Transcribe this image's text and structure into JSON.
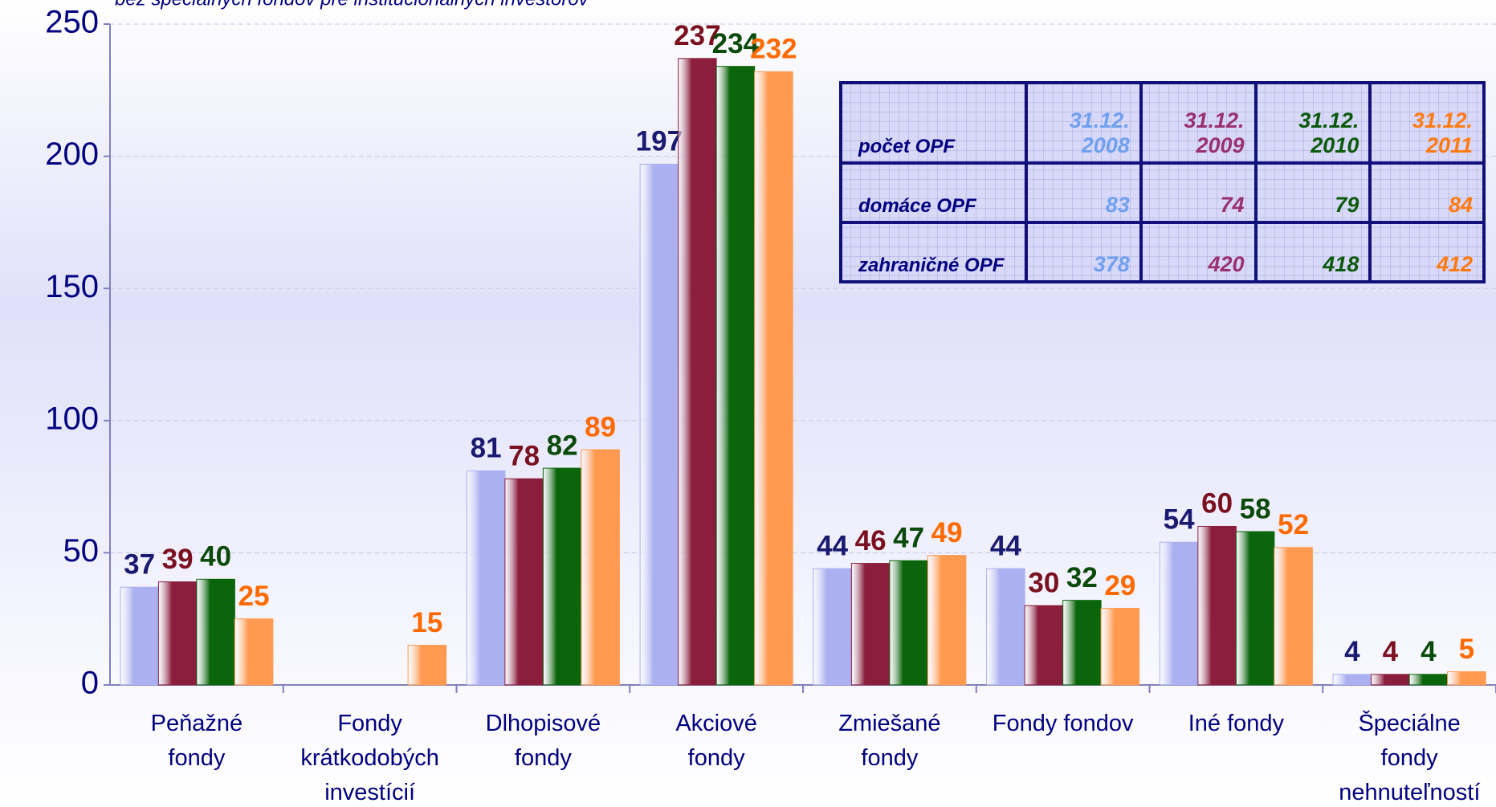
{
  "chart_data": {
    "type": "bar",
    "subtitle": "bez špeciálnych fondov pre inštitucionálnych investorov",
    "categories": [
      "Peňažné fondy",
      "Fondy krátkodobých investícií",
      "Dlhopisové fondy",
      "Akciové fondy",
      "Zmiešané fondy",
      "Fondy fondov",
      "Iné fondy",
      "Špeciálne fondy nehnuteľností"
    ],
    "series": [
      {
        "color": "#aab0f0",
        "label_color": "#1a1a70",
        "values": [
          37,
          null,
          81,
          197,
          44,
          44,
          54,
          4
        ]
      },
      {
        "color": "#8a1e3c",
        "label_color": "#7a1020",
        "values": [
          39,
          null,
          78,
          237,
          46,
          30,
          60,
          4
        ]
      },
      {
        "color": "#0b650b",
        "label_color": "#0a4a0a",
        "values": [
          40,
          null,
          82,
          234,
          47,
          32,
          58,
          4
        ]
      },
      {
        "color": "#ff9a50",
        "label_color": "#ff6a00",
        "values": [
          25,
          15,
          89,
          232,
          49,
          29,
          52,
          5
        ]
      }
    ],
    "ylim": [
      0,
      250
    ],
    "yticks": [
      0,
      50,
      100,
      150,
      200,
      250
    ],
    "grid": true
  },
  "table": {
    "header": [
      "počet OPF",
      "31.12. 2008",
      "31.12. 2009",
      "31.12. 2010",
      "31.12. 2011"
    ],
    "header_colors": [
      "#000080",
      "#6fa0f0",
      "#9a3070",
      "#0a5a0a",
      "#ff7a10"
    ],
    "rows": [
      [
        "domáce OPF",
        83,
        74,
        79,
        84
      ],
      [
        "zahraničné OPF",
        378,
        420,
        418,
        412
      ]
    ]
  }
}
